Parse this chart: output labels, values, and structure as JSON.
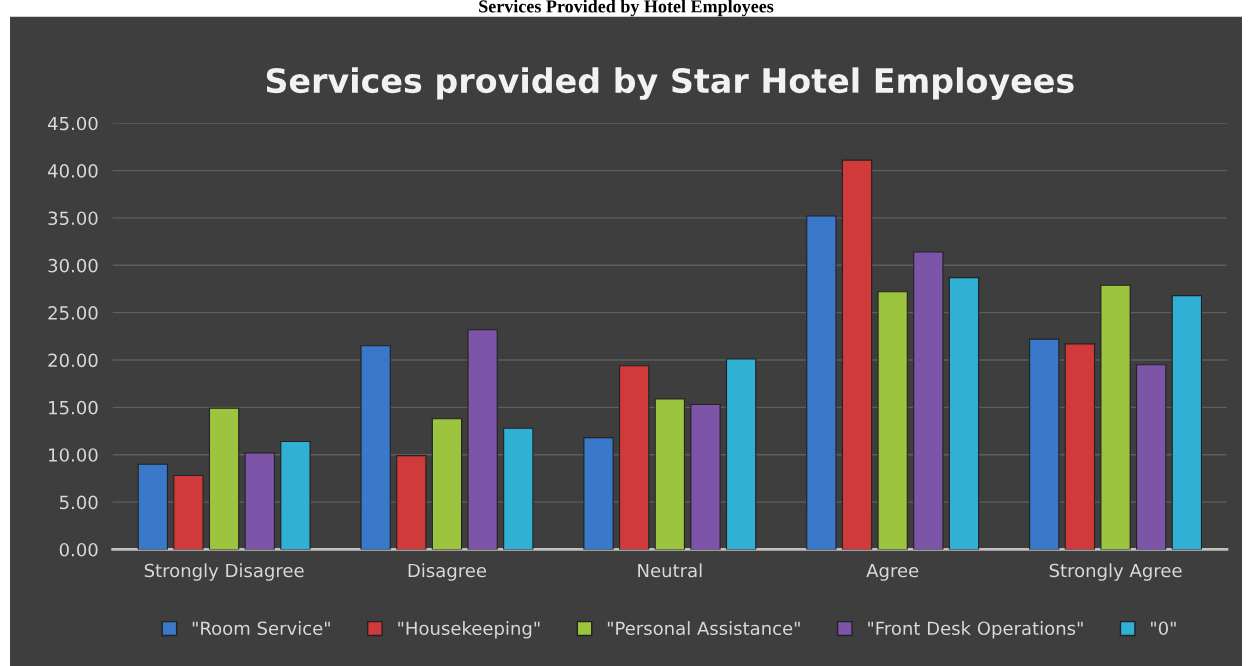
{
  "chart_data": {
    "type": "bar",
    "title": "Services provided by Star Hotel Employees",
    "annotations": [
      "Services Provided by Hotel Employees"
    ],
    "categories": [
      "Strongly Disagree",
      "Disagree",
      "Neutral",
      "Agree",
      "Strongly Agree"
    ],
    "series": [
      {
        "name": "\"Room Service\"",
        "color": "#3a78c9",
        "values": [
          9.0,
          21.5,
          11.8,
          35.2,
          22.2
        ]
      },
      {
        "name": "\"Housekeeping\"",
        "color": "#d03a3a",
        "values": [
          7.8,
          9.9,
          19.4,
          41.1,
          21.7
        ]
      },
      {
        "name": "\"Personal Assistance\"",
        "color": "#9cc43e",
        "values": [
          14.9,
          13.8,
          15.9,
          27.2,
          27.9
        ]
      },
      {
        "name": "\"Front Desk Operations\"",
        "color": "#7d55a8",
        "values": [
          10.2,
          23.2,
          15.3,
          31.4,
          19.5
        ]
      },
      {
        "name": "\"0\"",
        "color": "#31b0d6",
        "values": [
          11.4,
          12.8,
          20.1,
          28.7,
          26.8
        ]
      }
    ],
    "ylim": [
      0,
      45
    ],
    "yticks": [
      {
        "value": 0,
        "label": "0.00"
      },
      {
        "value": 5,
        "label": "5.00"
      },
      {
        "value": 10,
        "label": "10.00"
      },
      {
        "value": 15,
        "label": "15.00"
      },
      {
        "value": 20,
        "label": "20.00"
      },
      {
        "value": 25,
        "label": "25.00"
      },
      {
        "value": 30,
        "label": "30.00"
      },
      {
        "value": 35,
        "label": "35.00"
      },
      {
        "value": 40,
        "label": "40.00"
      },
      {
        "value": 45,
        "label": "45.00"
      }
    ],
    "grid": "y",
    "legend": "bottom"
  }
}
